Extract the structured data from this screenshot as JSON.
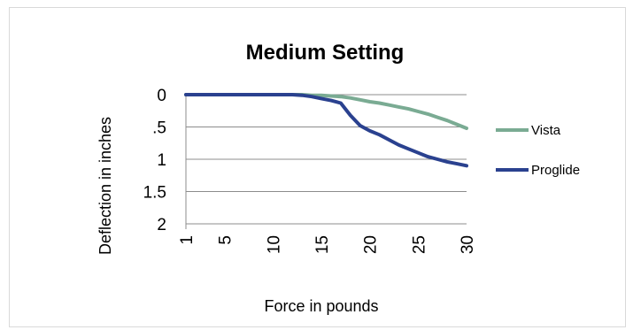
{
  "chart_data": {
    "type": "line",
    "title": "Medium Setting",
    "xlabel": "Force in pounds",
    "ylabel": "Deflection in inches",
    "x": [
      1,
      2,
      3,
      4,
      5,
      6,
      7,
      8,
      9,
      10,
      11,
      12,
      13,
      14,
      15,
      16,
      17,
      18,
      19,
      20,
      21,
      22,
      23,
      24,
      25,
      26,
      27,
      28,
      29,
      30
    ],
    "xticks": [
      {
        "value": 1,
        "label": "1"
      },
      {
        "value": 5,
        "label": "5"
      },
      {
        "value": 10,
        "label": "10"
      },
      {
        "value": 15,
        "label": "15"
      },
      {
        "value": 20,
        "label": "20"
      },
      {
        "value": 25,
        "label": "25"
      },
      {
        "value": 30,
        "label": "30"
      }
    ],
    "yticks": [
      {
        "value": 0,
        "label": "0"
      },
      {
        "value": 0.5,
        "label": ".5"
      },
      {
        "value": 1,
        "label": "1"
      },
      {
        "value": 1.5,
        "label": "1.5"
      },
      {
        "value": 2,
        "label": "2"
      }
    ],
    "ylim": [
      0,
      2
    ],
    "y_inverted": true,
    "grid": "horizontal",
    "legend_position": "right",
    "series": [
      {
        "name": "Vista",
        "color": "#7aab93",
        "values": [
          0,
          0,
          0,
          0,
          0,
          0,
          0,
          0,
          0,
          0,
          0,
          0,
          0,
          0.01,
          0.01,
          0.02,
          0.03,
          0.05,
          0.08,
          0.11,
          0.13,
          0.16,
          0.19,
          0.22,
          0.26,
          0.3,
          0.35,
          0.4,
          0.46,
          0.52
        ]
      },
      {
        "name": "Proglide",
        "color": "#2a418f",
        "values": [
          0,
          0,
          0,
          0,
          0,
          0,
          0,
          0,
          0,
          0,
          0,
          0,
          0.01,
          0.03,
          0.06,
          0.09,
          0.13,
          0.32,
          0.48,
          0.56,
          0.62,
          0.7,
          0.78,
          0.84,
          0.9,
          0.96,
          1.0,
          1.04,
          1.07,
          1.1
        ]
      }
    ]
  }
}
